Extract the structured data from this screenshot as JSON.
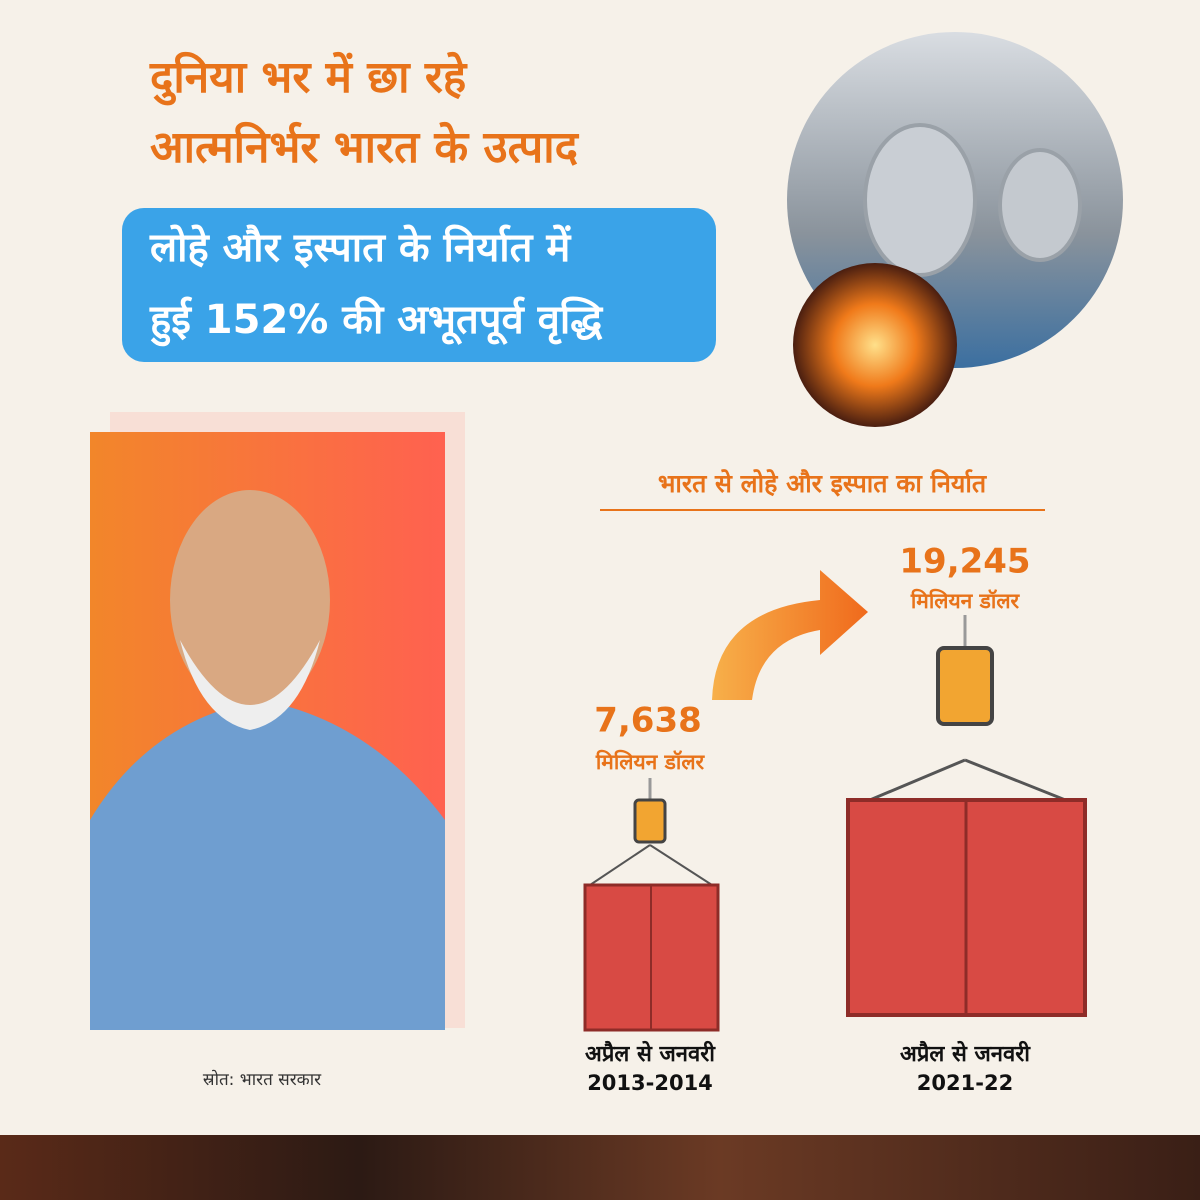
{
  "title": {
    "line1": "दुनिया भर में छा रहे",
    "line2": "आत्मनिर्भर भारत के उत्पाद"
  },
  "highlight": {
    "line1": "लोहे और इस्पात के निर्यात में",
    "line2": "हुई 152% की अभूतपूर्व वृद्धि"
  },
  "exports": {
    "heading": "भारत से लोहे और इस्पात का निर्यात",
    "items": [
      {
        "value": "7,638",
        "unit": "मिलियन डॉलर",
        "period": "अप्रैल से जनवरी",
        "years": "2013-2014"
      },
      {
        "value": "19,245",
        "unit": "मिलियन डॉलर",
        "period": "अप्रैल से जनवरी",
        "years": "2021-22"
      }
    ]
  },
  "source": "स्रोत: भारत सरकार"
}
